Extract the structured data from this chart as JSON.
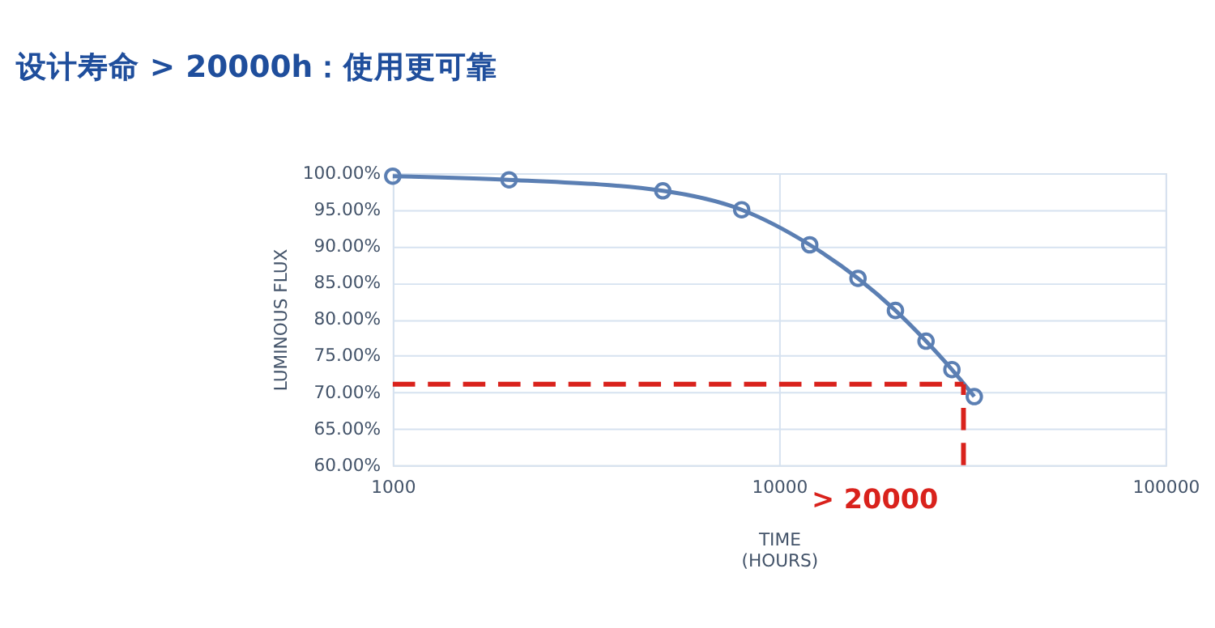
{
  "chart_data": {
    "type": "line",
    "title": "设计寿命 > 20000h：使用更可靠",
    "xlabel": "TIME\n(HOURS)",
    "ylabel": "LUMINOUS FLUX",
    "log": "x",
    "grid": true,
    "marker": "circle",
    "line_style": "solid",
    "x": [
      1000,
      2000,
      5000,
      8000,
      12000,
      16000,
      20000,
      24000,
      28000,
      32000
    ],
    "series": [
      {
        "color": "#5b7fb3",
        "values": [
          99.6,
          99.1,
          97.6,
          95.0,
          90.2,
          85.6,
          81.2,
          77.0,
          73.1,
          69.4
        ]
      }
    ],
    "ref_lines": [
      {
        "axis": "y",
        "value": 71.1,
        "color": "#d9221c",
        "line_style": "dashed"
      },
      {
        "axis": "x",
        "value": 30000,
        "color": "#d9221c",
        "line_style": "dashed"
      }
    ],
    "xlim": [
      1000,
      100000
    ],
    "xticks": [
      1000,
      10000,
      100000
    ],
    "ylim": [
      60,
      100
    ],
    "yticks": [
      {
        "value": 60,
        "label": "60.00%"
      },
      {
        "value": 65,
        "label": "65.00%"
      },
      {
        "value": 70,
        "label": "70.00%"
      },
      {
        "value": 75,
        "label": "75.00%"
      },
      {
        "value": 80,
        "label": "80.00%"
      },
      {
        "value": 85,
        "label": "85.00%"
      },
      {
        "value": 90,
        "label": "90.00%"
      },
      {
        "value": 95,
        "label": "95.00%"
      },
      {
        "value": 100,
        "label": "100.00%"
      }
    ],
    "annotations": [
      "> 20000"
    ]
  }
}
